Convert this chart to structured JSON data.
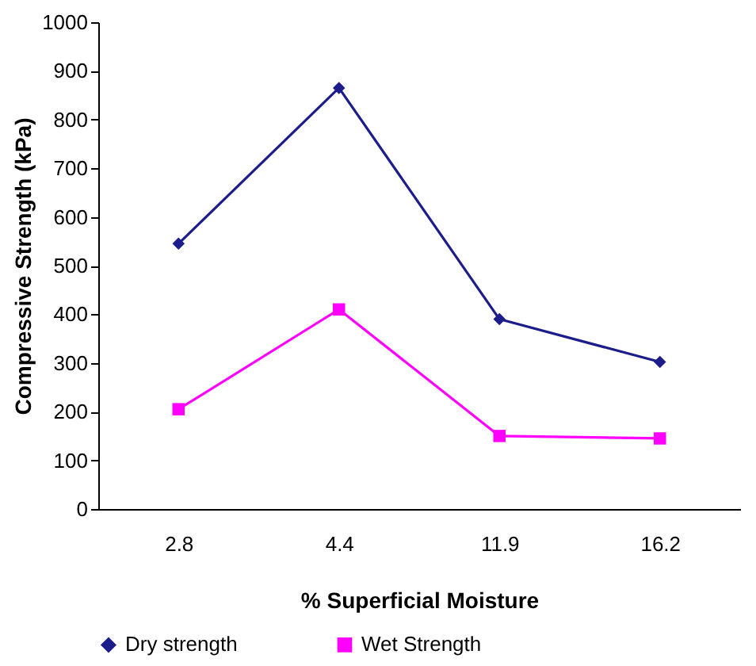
{
  "chart_data": {
    "type": "line",
    "xlabel": "% Superficial Moisture",
    "ylabel": "Compressive Strength (kPa)",
    "categories": [
      "2.8",
      "4.4",
      "11.9",
      "16.2"
    ],
    "series": [
      {
        "name": "Dry strength",
        "color": "#1c1c8a",
        "marker": "diamond",
        "values": [
          545,
          865,
          390,
          302
        ]
      },
      {
        "name": "Wet Strength",
        "color": "#ff00ff",
        "marker": "square",
        "values": [
          205,
          410,
          150,
          145
        ]
      }
    ],
    "ylim": [
      0,
      1000
    ],
    "yticks": [
      0,
      100,
      200,
      300,
      400,
      500,
      600,
      700,
      800,
      900,
      1000
    ],
    "grid": false,
    "legend": "bottom",
    "line_style": "solid"
  }
}
